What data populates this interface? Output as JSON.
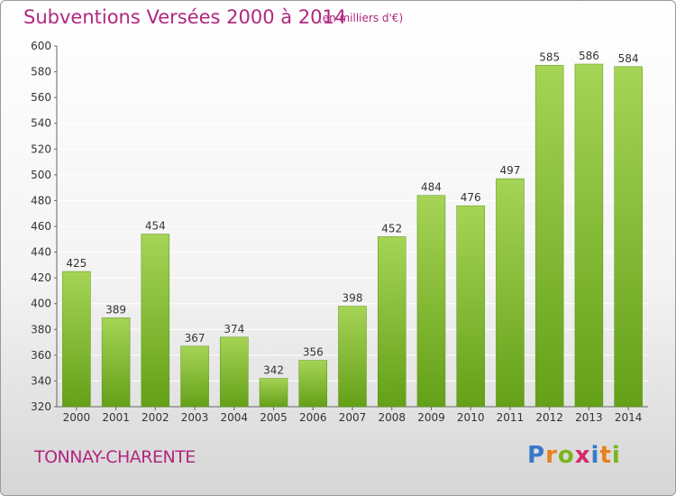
{
  "header": {
    "title": "Subventions Versées 2000 à 2014",
    "subtitle": "(en milliers d'€)"
  },
  "footer": {
    "commune": "TONNAY-CHARENTE",
    "logo_letters": [
      {
        "ch": "P",
        "color": "#3a78c8"
      },
      {
        "ch": "r",
        "color": "#e8801a"
      },
      {
        "ch": "o",
        "color": "#7ab51d"
      },
      {
        "ch": "x",
        "color": "#d62a6a"
      },
      {
        "ch": "i",
        "color": "#3a78c8"
      },
      {
        "ch": "t",
        "color": "#e8801a"
      },
      {
        "ch": "i",
        "color": "#7ab51d"
      }
    ]
  },
  "colors": {
    "bar_top": "#a6d456",
    "bar_bottom": "#64a018",
    "grid": "#ffffff",
    "text": "#333333",
    "accent": "#b0287f"
  },
  "chart_data": {
    "type": "bar",
    "title": "Subventions Versées 2000 à 2014",
    "subtitle": "(en milliers d'€)",
    "categories": [
      "2000",
      "2001",
      "2002",
      "2003",
      "2004",
      "2005",
      "2006",
      "2007",
      "2008",
      "2009",
      "2010",
      "2011",
      "2012",
      "2013",
      "2014"
    ],
    "values": [
      425,
      389,
      454,
      367,
      374,
      342,
      356,
      398,
      452,
      484,
      476,
      497,
      585,
      586,
      584
    ],
    "ylim": [
      320,
      600
    ],
    "yticks": [
      320,
      340,
      360,
      380,
      400,
      420,
      440,
      460,
      480,
      500,
      520,
      540,
      560,
      580,
      600
    ],
    "grid": true,
    "data_labels": true
  }
}
